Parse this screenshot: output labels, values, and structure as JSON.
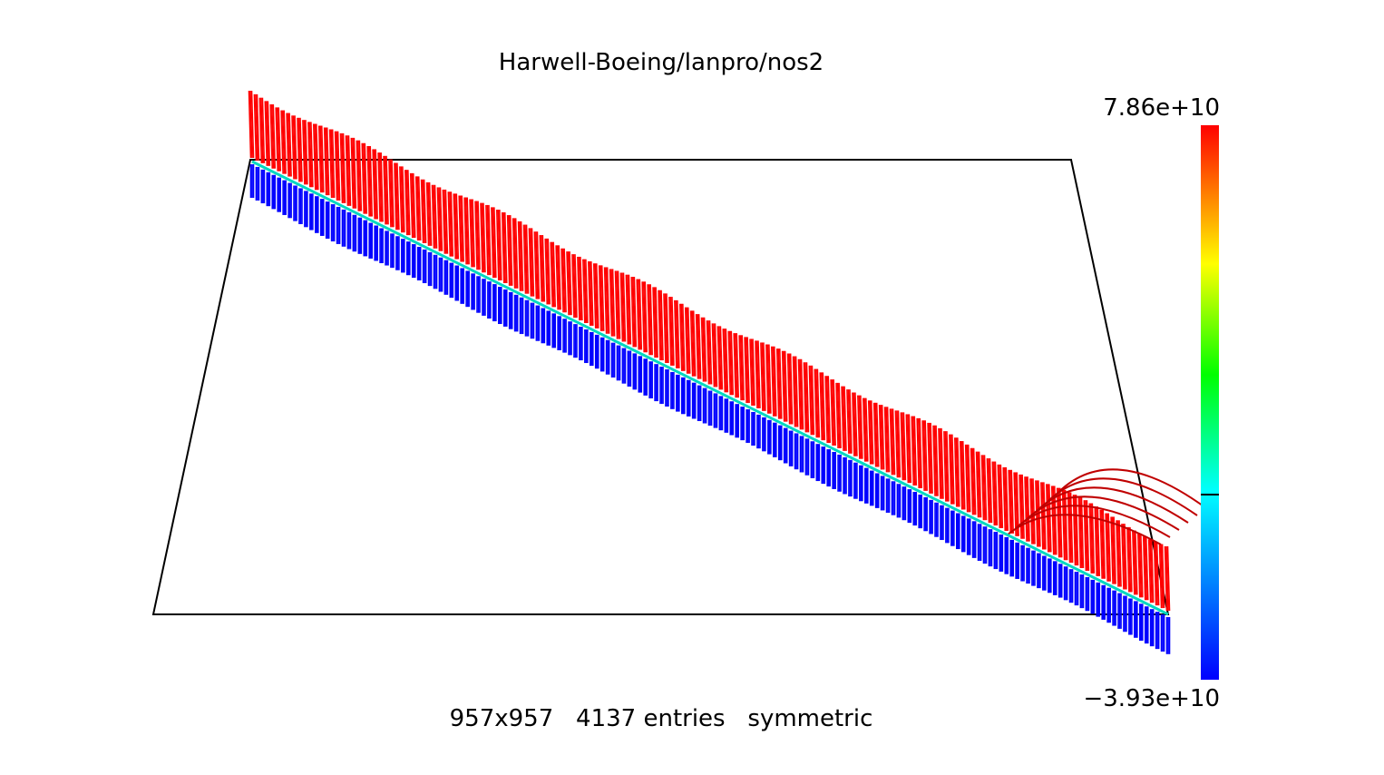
{
  "chart_data": {
    "type": "surface",
    "title": "Harwell-Boeing/lanpro/nos2",
    "caption": "957x957   4137 entries   symmetric",
    "matrix": {
      "rows": 957,
      "cols": 957,
      "entries": 4137,
      "symmetry": "symmetric"
    },
    "colorbar": {
      "max_label": "7.86e+10",
      "min_label": "−3.93e+10",
      "max": 78600000000,
      "min": -39300000000,
      "colors": [
        "#0000ff",
        "#00ffff",
        "#00ff00",
        "#ffff00",
        "#ff0000"
      ],
      "tick_value": 0
    },
    "series_colors": {
      "positive": "#ff0000",
      "negative": "#0000ff",
      "diagonal": "#00d8c0"
    },
    "grid": false
  }
}
